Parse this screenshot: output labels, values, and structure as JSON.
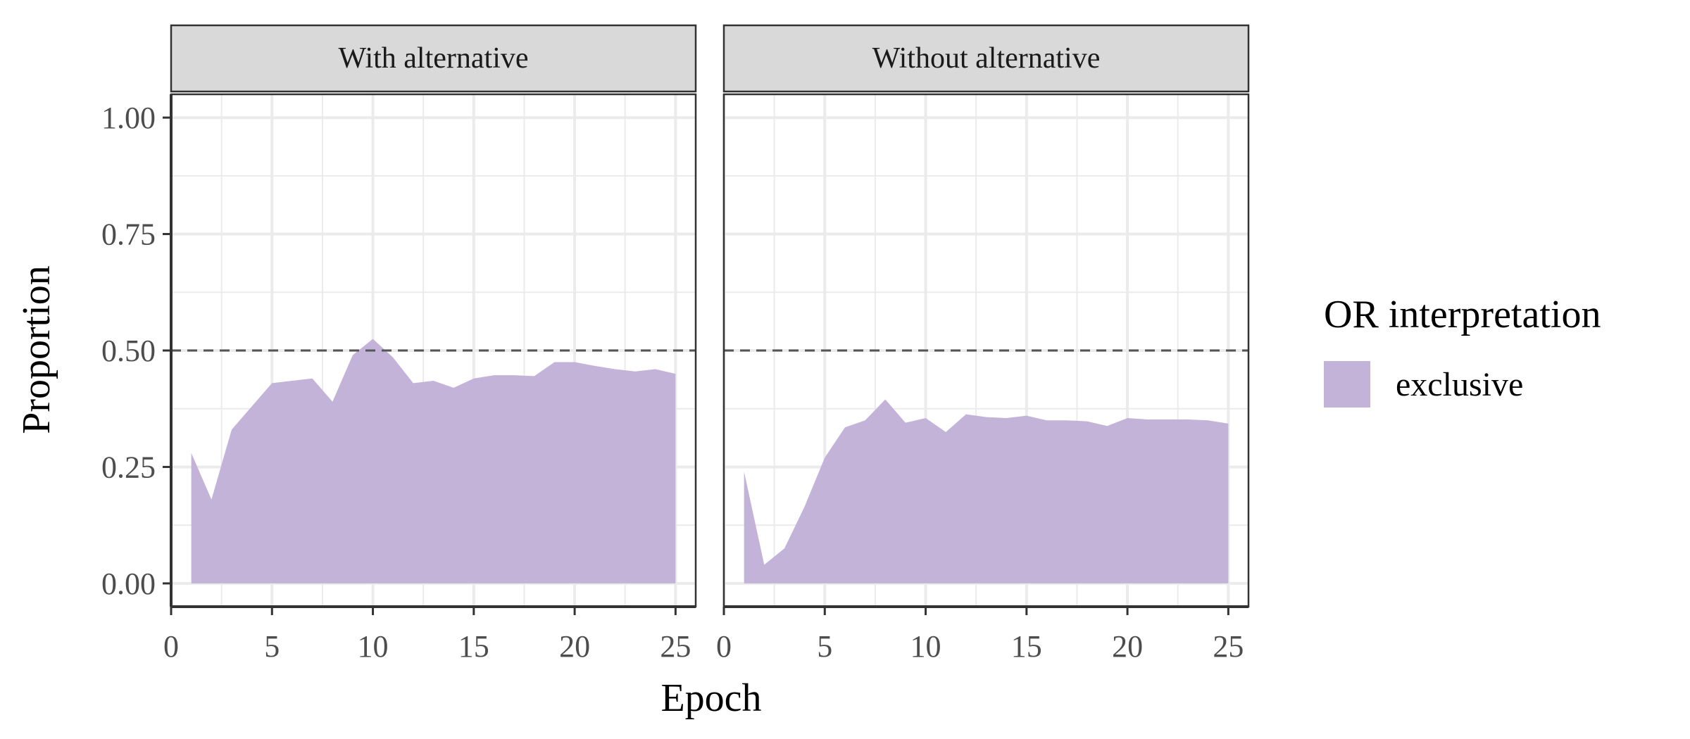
{
  "chart_data": {
    "type": "area",
    "ylabel": "Proportion",
    "xlabel": "Epoch",
    "xlim": [
      0,
      26
    ],
    "ylim": [
      -0.05,
      1.05
    ],
    "x_ticks": [
      0,
      5,
      10,
      15,
      20,
      25
    ],
    "y_ticks": [
      0,
      0.25,
      0.5,
      0.75,
      1
    ],
    "y_tick_labels": [
      "0.00",
      "0.25",
      "0.50",
      "0.75",
      "1.00"
    ],
    "reference_line": {
      "y": 0.5,
      "style": "dashed",
      "color": "#555555"
    },
    "grid": true,
    "legend": {
      "title": "OR interpretation",
      "position": "right",
      "entries": [
        {
          "label": "exclusive",
          "color": "#c3b3d9"
        }
      ]
    },
    "fill_color": "#c3b3d9",
    "panels": [
      {
        "title": "With alternative",
        "x": [
          1,
          2,
          3,
          4,
          5,
          6,
          7,
          8,
          9,
          10,
          11,
          12,
          13,
          14,
          15,
          16,
          17,
          18,
          19,
          20,
          21,
          22,
          23,
          24,
          25
        ],
        "values": [
          0.28,
          0.18,
          0.33,
          0.38,
          0.43,
          0.435,
          0.44,
          0.39,
          0.49,
          0.525,
          0.485,
          0.43,
          0.435,
          0.42,
          0.44,
          0.447,
          0.447,
          0.445,
          0.475,
          0.475,
          0.467,
          0.46,
          0.455,
          0.46,
          0.45
        ]
      },
      {
        "title": "Without alternative",
        "x": [
          1,
          2,
          3,
          4,
          5,
          6,
          7,
          8,
          9,
          10,
          11,
          12,
          13,
          14,
          15,
          16,
          17,
          18,
          19,
          20,
          21,
          22,
          23,
          24,
          25
        ],
        "values": [
          0.24,
          0.04,
          0.075,
          0.165,
          0.27,
          0.335,
          0.35,
          0.395,
          0.345,
          0.355,
          0.325,
          0.363,
          0.357,
          0.355,
          0.36,
          0.35,
          0.35,
          0.348,
          0.338,
          0.355,
          0.352,
          0.352,
          0.352,
          0.35,
          0.343
        ]
      }
    ]
  }
}
